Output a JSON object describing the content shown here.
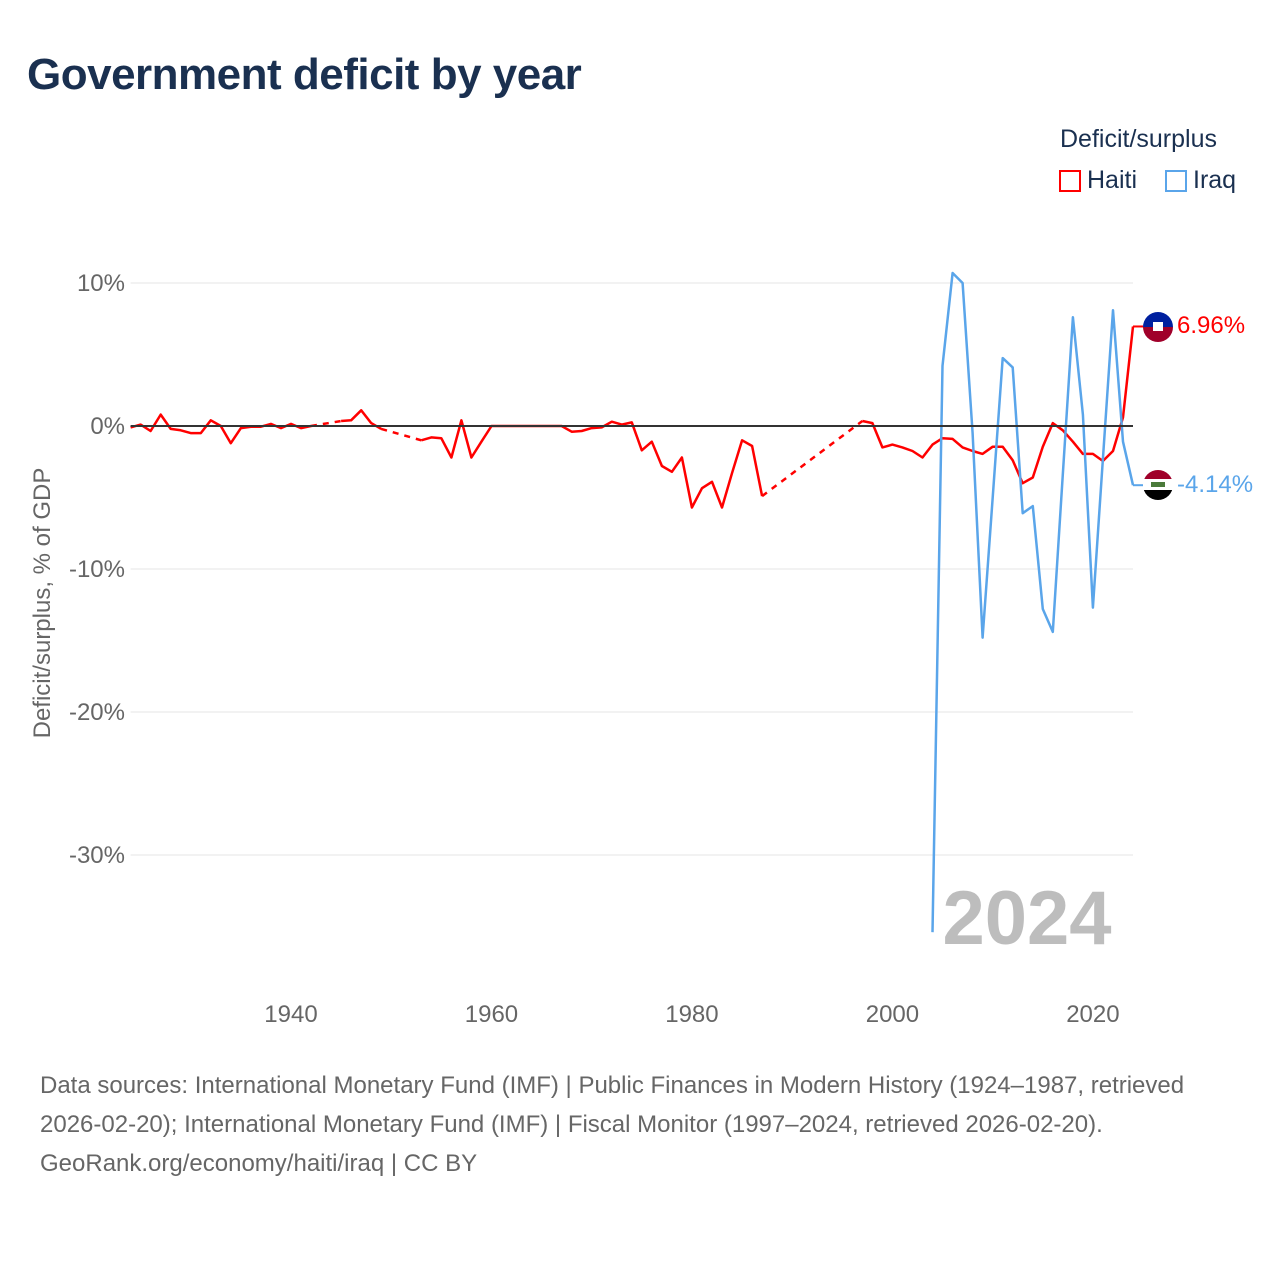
{
  "title": "Government deficit by year",
  "legend": {
    "title": "Deficit/surplus",
    "items": [
      {
        "label": "Haiti",
        "color": "#ff0000"
      },
      {
        "label": "Iraq",
        "color": "#5aa5ea"
      }
    ]
  },
  "footer": {
    "sources": "Data sources: International Monetary Fund (IMF) | Public Finances in Modern History (1924–1987, retrieved 2026-02-20); International Monetary Fund (IMF) | Fiscal Monitor (1997–2024, retrieved 2026-02-20).",
    "credit": "GeoRank.org/economy/haiti/iraq | CC BY"
  },
  "chart_data": {
    "type": "line",
    "title": "Government deficit by year",
    "ylabel": "Deficit/surplus, % of GDP",
    "xlabel": "",
    "xlim": [
      1924,
      2024
    ],
    "ylim": [
      -36,
      12
    ],
    "x_ticks": [
      1940,
      1960,
      1980,
      2000,
      2020
    ],
    "y_ticks": [
      {
        "v": 10,
        "label": "10%"
      },
      {
        "v": 0,
        "label": "0%"
      },
      {
        "v": -10,
        "label": "-10%"
      },
      {
        "v": -20,
        "label": "-20%"
      },
      {
        "v": -30,
        "label": "-30%"
      }
    ],
    "year_watermark": "2024",
    "series": [
      {
        "name": "Haiti",
        "color": "#ff0000",
        "end_label": "6.96%",
        "x": [
          1924,
          1925,
          1926,
          1927,
          1928,
          1929,
          1930,
          1931,
          1932,
          1933,
          1934,
          1935,
          1936,
          1937,
          1938,
          1939,
          1940,
          1941,
          1942,
          1945,
          1946,
          1947,
          1948,
          1949,
          1953,
          1954,
          1955,
          1956,
          1957,
          1958,
          1959,
          1960,
          1961,
          1962,
          1963,
          1964,
          1965,
          1966,
          1967,
          1968,
          1969,
          1970,
          1971,
          1972,
          1973,
          1974,
          1975,
          1976,
          1977,
          1978,
          1979,
          1980,
          1981,
          1982,
          1983,
          1984,
          1985,
          1986,
          1987,
          1997,
          1998,
          1999,
          2000,
          2001,
          2002,
          2003,
          2004,
          2005,
          2006,
          2007,
          2008,
          2009,
          2010,
          2011,
          2012,
          2013,
          2014,
          2015,
          2016,
          2017,
          2018,
          2019,
          2020,
          2021,
          2022,
          2023,
          2024
        ],
        "values": [
          -0.1,
          0.1,
          -0.35,
          0.8,
          -0.2,
          -0.3,
          -0.5,
          -0.5,
          0.4,
          0,
          -1.2,
          -0.15,
          -0.05,
          -0.05,
          0.15,
          -0.15,
          0.15,
          -0.15,
          0,
          0.35,
          0.4,
          1.1,
          0.2,
          -0.2,
          -1.0,
          -0.8,
          -0.85,
          -2.2,
          0.4,
          -2.2,
          -1.1,
          0,
          0,
          0,
          0,
          0,
          0,
          0,
          0,
          -0.4,
          -0.35,
          -0.15,
          -0.1,
          0.3,
          0.1,
          0.25,
          -1.7,
          -1.1,
          -2.8,
          -3.2,
          -2.2,
          -5.7,
          -4.35,
          -3.9,
          -5.7,
          -3.3,
          -1.0,
          -1.4,
          -4.9,
          0.35,
          0.2,
          -1.5,
          -1.3,
          -1.5,
          -1.75,
          -2.2,
          -1.3,
          -0.85,
          -0.9,
          -1.5,
          -1.75,
          -1.95,
          -1.45,
          -1.45,
          -2.4,
          -4.0,
          -3.6,
          -1.45,
          0.2,
          -0.3,
          -1.1,
          -1.95,
          -1.95,
          -2.45,
          -1.75,
          0.6,
          6.96
        ]
      },
      {
        "name": "Iraq",
        "color": "#5aa5ea",
        "end_label": "-4.14%",
        "x": [
          2004,
          2005,
          2006,
          2007,
          2008,
          2009,
          2010,
          2011,
          2012,
          2013,
          2014,
          2015,
          2016,
          2017,
          2018,
          2019,
          2020,
          2021,
          2022,
          2023,
          2024
        ],
        "values": [
          -35.4,
          4.2,
          10.7,
          10.0,
          -0.5,
          -14.8,
          -5.0,
          4.75,
          4.1,
          -6.1,
          -5.6,
          -12.8,
          -14.4,
          -3.4,
          7.6,
          0.8,
          -12.7,
          -2.3,
          8.1,
          -1.1,
          -4.14
        ]
      }
    ]
  }
}
